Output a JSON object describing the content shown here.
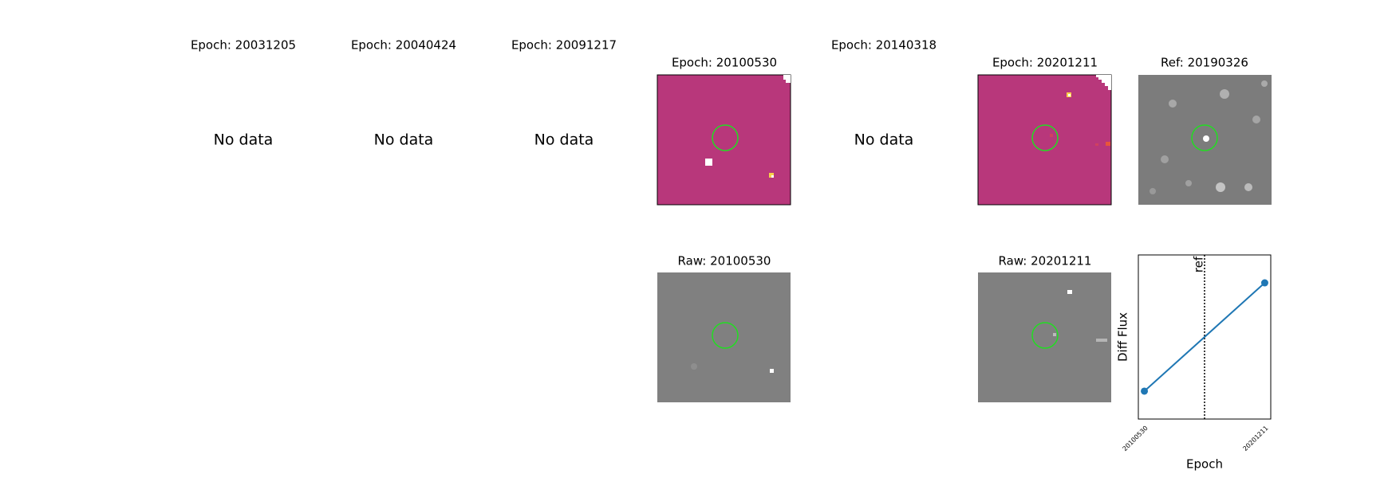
{
  "panels": [
    {
      "title": "Epoch: 20031205",
      "message": "No data"
    },
    {
      "title": "Epoch: 20040424",
      "message": "No data"
    },
    {
      "title": "Epoch: 20091217",
      "message": "No data"
    },
    {
      "title": "Epoch: 20100530"
    },
    {
      "title": "Epoch: 20140318",
      "message": "No data"
    },
    {
      "title": "Epoch: 20201211"
    },
    {
      "title": "Ref: 20190326"
    }
  ],
  "raw": [
    {
      "title": "Raw: 20100530"
    },
    {
      "title": "Raw: 20201211"
    }
  ],
  "chart_data": {
    "type": "line",
    "xlabel": "Epoch",
    "ylabel": "Diff Flux",
    "categories": [
      "20100530",
      "20201211"
    ],
    "color": "#1f77b4",
    "series": [
      {
        "values": [
          0.17,
          0.83
        ]
      }
    ],
    "xlim": [
      -0.05,
      1.05
    ],
    "ylim": [
      0,
      1
    ],
    "ref_line": {
      "x": 0.5,
      "label": "ref"
    }
  }
}
